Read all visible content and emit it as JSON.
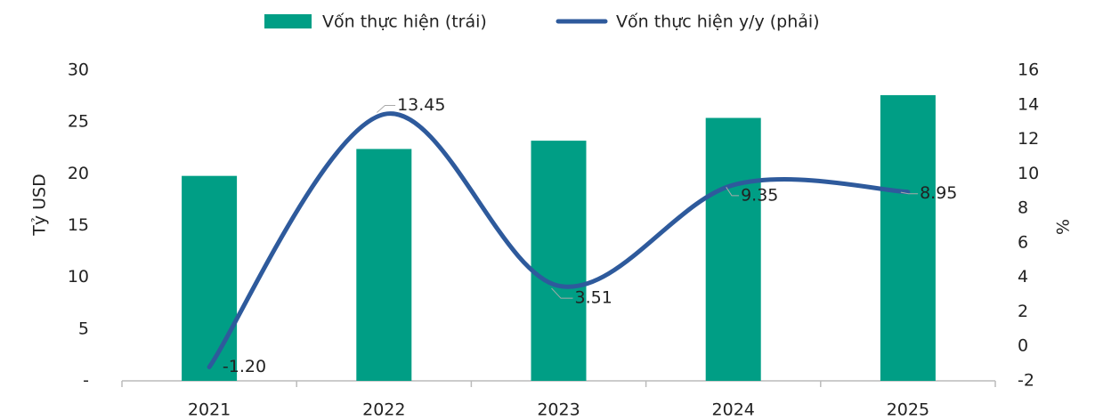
{
  "chart_data": {
    "type": "bar_line",
    "categories": [
      "2021",
      "2022",
      "2023",
      "2024",
      "2025"
    ],
    "series": [
      {
        "name": "Vốn thực hiện (trái)",
        "type": "bar",
        "color": "#009e85",
        "values": [
          19.8,
          22.4,
          23.2,
          25.4,
          27.6
        ]
      },
      {
        "name": "Vốn thực hiện y/y (phải)",
        "type": "line",
        "axis": "y2",
        "color": "#2e5a9c",
        "values": [
          -1.2,
          13.45,
          3.51,
          9.35,
          8.95
        ],
        "value_labels": [
          "-1.20",
          "13.45",
          "3.51",
          "9.35",
          "8.95"
        ]
      }
    ],
    "ylabel": "Tỷ USD",
    "y2label": "%",
    "ylim": [
      0,
      30
    ],
    "yticks": [
      {
        "value": 0,
        "label": "-"
      },
      5,
      10,
      15,
      20,
      25,
      30
    ],
    "y2lim": [
      -2,
      16
    ],
    "y2ticks": [
      -2,
      0,
      2,
      4,
      6,
      8,
      10,
      12,
      14,
      16
    ],
    "legend": "top"
  }
}
